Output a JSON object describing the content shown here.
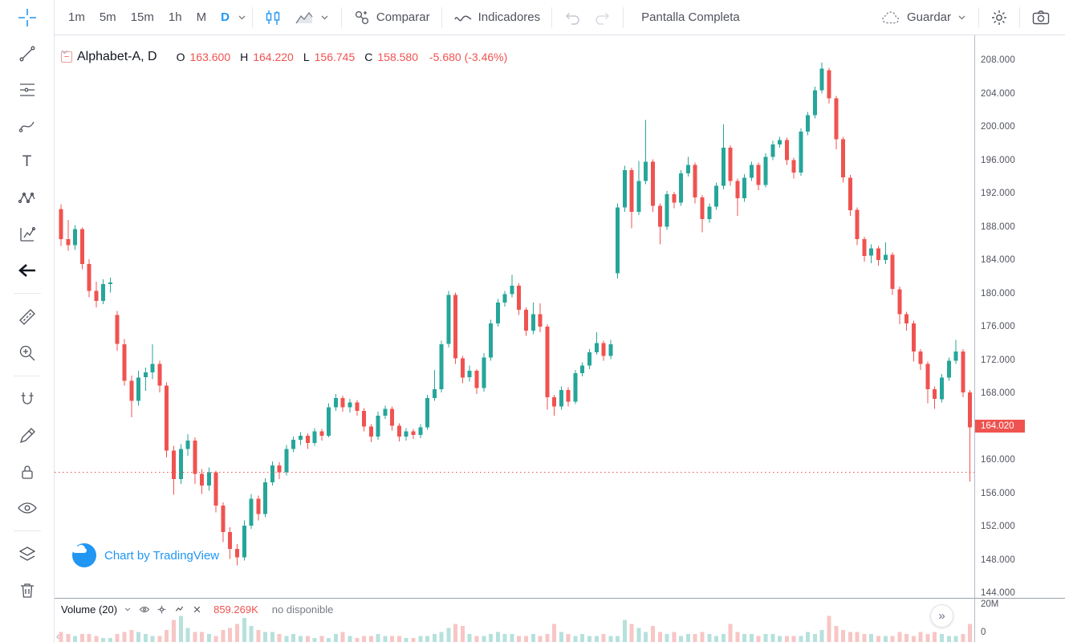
{
  "toolbar": {
    "intervals": [
      {
        "label": "1m",
        "active": false
      },
      {
        "label": "5m",
        "active": false
      },
      {
        "label": "15m",
        "active": false
      },
      {
        "label": "1h",
        "active": false
      },
      {
        "label": "M",
        "active": false
      },
      {
        "label": "D",
        "active": true
      }
    ],
    "compare_label": "Comparar",
    "indicators_label": "Indicadores",
    "fullscreen_label": "Pantalla Completa",
    "save_label": "Guardar"
  },
  "legend": {
    "symbol": "Alphabet-A, D",
    "o_label": "O",
    "o_value": "163.600",
    "h_label": "H",
    "h_value": "164.220",
    "l_label": "L",
    "l_value": "156.745",
    "c_label": "C",
    "c_value": "158.580",
    "change": "-5.680 (-3.46%)",
    "collapse_glyph": "−"
  },
  "watermark_text": "Chart by TradingView",
  "price_axis": {
    "labels": [
      "208.000",
      "204.000",
      "200.000",
      "196.000",
      "192.000",
      "188.000",
      "184.000",
      "180.000",
      "176.000",
      "172.000",
      "168.000",
      "164.000",
      "160.000",
      "156.000",
      "152.000",
      "148.000",
      "144.000"
    ],
    "last_price_label": "164.020"
  },
  "volume_pane": {
    "title": "Volume (20)",
    "value": "859.269K",
    "status": "no disponible",
    "axis_top": "20M",
    "axis_bottom": "0"
  },
  "icons": {
    "restore_pane": "»",
    "scroll_left": "‹",
    "text_tool": "T"
  },
  "chart_data": {
    "type": "candlestick",
    "symbol": "Alphabet-A",
    "interval": "D",
    "price_max": 208,
    "price_min": 144,
    "grid": false,
    "colors": {
      "up": "#26a69a",
      "down": "#ef5350",
      "vol_up": "#b7e1dc",
      "vol_down": "#f7c6c5",
      "accent": "#2196f3",
      "last_label_bg": "#ef5350"
    },
    "dotted_line_price": 158.58,
    "last_price": 164.02,
    "volume_axis_max": 20,
    "candles": [
      [
        190.2,
        190.8,
        185.8,
        186.6
      ],
      [
        186.6,
        188.9,
        185.2,
        185.9
      ],
      [
        185.9,
        188.3,
        185.3,
        187.8
      ],
      [
        187.8,
        188.0,
        183.0,
        183.6
      ],
      [
        183.6,
        184.2,
        179.6,
        180.4
      ],
      [
        180.4,
        181.5,
        178.4,
        179.2
      ],
      [
        179.2,
        181.8,
        178.8,
        181.2
      ],
      [
        181.2,
        182.0,
        180.2,
        181.4
      ],
      [
        177.5,
        178.0,
        173.2,
        174.0
      ],
      [
        174.0,
        174.6,
        169.0,
        169.6
      ],
      [
        169.6,
        170.2,
        165.2,
        167.2
      ],
      [
        167.2,
        170.8,
        166.6,
        170.0
      ],
      [
        170.0,
        171.2,
        168.4,
        170.6
      ],
      [
        170.6,
        174.0,
        169.8,
        171.6
      ],
      [
        171.6,
        172.0,
        168.2,
        169.0
      ],
      [
        169.0,
        169.4,
        160.4,
        161.2
      ],
      [
        161.2,
        161.8,
        155.9,
        157.8
      ],
      [
        157.8,
        162.0,
        157.2,
        161.4
      ],
      [
        161.4,
        163.2,
        160.6,
        162.4
      ],
      [
        162.4,
        162.8,
        157.2,
        158.4
      ],
      [
        158.4,
        159.0,
        156.0,
        157.0
      ],
      [
        157.0,
        159.2,
        156.4,
        158.6
      ],
      [
        158.6,
        158.8,
        153.8,
        154.6
      ],
      [
        154.6,
        155.0,
        150.2,
        151.4
      ],
      [
        151.4,
        152.0,
        148.2,
        149.4
      ],
      [
        149.4,
        150.0,
        147.4,
        148.4
      ],
      [
        148.4,
        152.8,
        148.0,
        152.2
      ],
      [
        152.2,
        156.0,
        151.8,
        155.4
      ],
      [
        155.4,
        155.8,
        152.8,
        153.6
      ],
      [
        153.6,
        157.9,
        153.2,
        157.4
      ],
      [
        157.4,
        159.9,
        157.0,
        159.4
      ],
      [
        159.4,
        159.8,
        157.8,
        158.6
      ],
      [
        158.6,
        161.9,
        158.2,
        161.4
      ],
      [
        161.4,
        162.9,
        161.0,
        162.5
      ],
      [
        162.5,
        163.4,
        161.9,
        163.0
      ],
      [
        163.0,
        163.3,
        161.4,
        162.1
      ],
      [
        162.1,
        163.9,
        161.8,
        163.5
      ],
      [
        163.5,
        163.8,
        162.4,
        163.0
      ],
      [
        163.0,
        166.9,
        162.8,
        166.4
      ],
      [
        166.4,
        168.0,
        166.0,
        167.5
      ],
      [
        167.5,
        167.8,
        165.9,
        166.4
      ],
      [
        166.4,
        167.4,
        165.8,
        167.0
      ],
      [
        167.0,
        167.3,
        165.4,
        166.0
      ],
      [
        166.0,
        166.3,
        163.5,
        164.1
      ],
      [
        164.1,
        164.4,
        162.2,
        162.9
      ],
      [
        162.9,
        165.9,
        162.5,
        165.4
      ],
      [
        165.4,
        166.6,
        165.0,
        166.2
      ],
      [
        166.2,
        166.5,
        163.6,
        164.2
      ],
      [
        164.2,
        164.5,
        162.3,
        162.9
      ],
      [
        162.9,
        163.9,
        162.4,
        163.5
      ],
      [
        163.5,
        163.8,
        162.6,
        163.1
      ],
      [
        163.1,
        164.4,
        162.7,
        164.0
      ],
      [
        164.0,
        167.9,
        163.7,
        167.5
      ],
      [
        167.5,
        170.9,
        167.2,
        168.6
      ],
      [
        168.6,
        174.4,
        168.2,
        174.0
      ],
      [
        174.0,
        180.4,
        173.6,
        179.9
      ],
      [
        179.9,
        180.2,
        171.6,
        172.3
      ],
      [
        172.3,
        172.6,
        169.3,
        170.0
      ],
      [
        170.0,
        171.4,
        169.5,
        170.8
      ],
      [
        170.8,
        171.0,
        168.0,
        168.7
      ],
      [
        168.7,
        172.9,
        168.3,
        172.4
      ],
      [
        172.4,
        176.9,
        172.0,
        176.5
      ],
      [
        176.5,
        179.4,
        176.1,
        179.0
      ],
      [
        179.0,
        180.4,
        178.5,
        180.0
      ],
      [
        180.0,
        182.3,
        179.6,
        181.0
      ],
      [
        181.0,
        181.3,
        177.5,
        178.1
      ],
      [
        178.1,
        178.4,
        175.0,
        175.6
      ],
      [
        175.6,
        179.0,
        175.2,
        177.6
      ],
      [
        177.6,
        178.9,
        175.4,
        176.1
      ],
      [
        176.1,
        176.4,
        166.1,
        167.6
      ],
      [
        167.6,
        167.9,
        165.4,
        166.5
      ],
      [
        166.5,
        168.9,
        166.1,
        168.5
      ],
      [
        168.5,
        168.8,
        166.5,
        167.1
      ],
      [
        167.1,
        170.9,
        166.8,
        170.5
      ],
      [
        170.5,
        171.8,
        170.1,
        171.4
      ],
      [
        171.4,
        173.4,
        171.0,
        173.0
      ],
      [
        173.0,
        175.4,
        172.7,
        174.1
      ],
      [
        174.1,
        174.4,
        172.0,
        172.6
      ],
      [
        172.6,
        174.5,
        172.2,
        174.0
      ],
      [
        182.5,
        190.9,
        181.9,
        190.4
      ],
      [
        190.4,
        195.4,
        189.9,
        194.9
      ],
      [
        194.9,
        195.2,
        187.9,
        189.9
      ],
      [
        189.9,
        196.0,
        189.5,
        193.6
      ],
      [
        193.6,
        200.9,
        193.2,
        195.9
      ],
      [
        195.9,
        196.2,
        189.9,
        190.6
      ],
      [
        190.6,
        190.9,
        186.0,
        188.1
      ],
      [
        188.1,
        192.4,
        187.7,
        192.0
      ],
      [
        192.0,
        192.3,
        190.3,
        191.0
      ],
      [
        191.0,
        194.9,
        190.6,
        194.5
      ],
      [
        194.5,
        196.5,
        194.1,
        195.5
      ],
      [
        195.5,
        195.8,
        190.9,
        191.6
      ],
      [
        191.6,
        191.9,
        187.4,
        189.0
      ],
      [
        189.0,
        190.9,
        188.6,
        190.5
      ],
      [
        190.5,
        193.4,
        190.1,
        193.0
      ],
      [
        193.0,
        200.4,
        192.6,
        197.6
      ],
      [
        197.6,
        197.9,
        193.0,
        193.6
      ],
      [
        193.6,
        193.9,
        189.4,
        191.5
      ],
      [
        191.5,
        194.4,
        191.1,
        194.0
      ],
      [
        194.0,
        195.9,
        193.6,
        195.5
      ],
      [
        195.5,
        195.8,
        192.5,
        193.1
      ],
      [
        193.1,
        196.9,
        192.8,
        196.5
      ],
      [
        196.5,
        198.4,
        196.1,
        198.0
      ],
      [
        198.0,
        198.9,
        197.6,
        198.5
      ],
      [
        198.5,
        198.8,
        195.5,
        196.1
      ],
      [
        196.1,
        196.4,
        193.9,
        194.6
      ],
      [
        194.6,
        199.9,
        194.2,
        199.5
      ],
      [
        199.5,
        201.9,
        199.1,
        201.5
      ],
      [
        201.5,
        204.9,
        201.1,
        204.5
      ],
      [
        204.5,
        207.8,
        204.1,
        207.1
      ],
      [
        206.9,
        207.2,
        202.9,
        203.5
      ],
      [
        203.5,
        203.8,
        197.4,
        198.6
      ],
      [
        198.6,
        198.9,
        193.4,
        194.0
      ],
      [
        194.0,
        194.3,
        189.4,
        190.1
      ],
      [
        190.1,
        190.4,
        185.9,
        186.6
      ],
      [
        186.6,
        186.9,
        183.9,
        184.6
      ],
      [
        184.6,
        186.0,
        183.7,
        185.5
      ],
      [
        185.5,
        185.8,
        183.4,
        184.1
      ],
      [
        184.1,
        186.2,
        183.6,
        184.7
      ],
      [
        184.7,
        185.0,
        179.9,
        180.6
      ],
      [
        180.6,
        180.9,
        176.4,
        177.6
      ],
      [
        177.6,
        177.9,
        175.6,
        176.5
      ],
      [
        176.5,
        176.8,
        171.9,
        173.1
      ],
      [
        173.1,
        173.4,
        170.9,
        171.6
      ],
      [
        171.6,
        171.9,
        166.9,
        168.6
      ],
      [
        168.6,
        168.9,
        166.2,
        167.4
      ],
      [
        167.4,
        170.4,
        167.0,
        170.0
      ],
      [
        170.0,
        172.4,
        169.6,
        172.0
      ],
      [
        172.0,
        174.5,
        171.6,
        173.1
      ],
      [
        173.1,
        173.4,
        167.6,
        168.2
      ],
      [
        168.2,
        168.5,
        157.5,
        164.0
      ]
    ],
    "volumes": [
      5,
      4,
      3,
      4,
      4,
      3,
      2,
      2,
      4,
      5,
      6,
      5,
      4,
      3,
      3,
      6,
      11,
      13,
      7,
      5,
      5,
      4,
      3,
      6,
      7,
      9,
      12,
      8,
      6,
      5,
      5,
      4,
      3,
      4,
      3,
      3,
      2,
      3,
      2,
      4,
      5,
      3,
      2,
      3,
      3,
      4,
      3,
      3,
      3,
      2,
      2,
      3,
      3,
      4,
      5,
      7,
      9,
      8,
      4,
      3,
      3,
      4,
      5,
      4,
      4,
      3,
      3,
      4,
      3,
      4,
      9,
      5,
      4,
      3,
      4,
      3,
      3,
      4,
      3,
      3,
      11,
      9,
      7,
      5,
      8,
      5,
      4,
      5,
      3,
      4,
      4,
      5,
      4,
      3,
      4,
      9,
      5,
      4,
      4,
      3,
      4,
      4,
      3,
      3,
      3,
      3,
      5,
      4,
      6,
      13,
      8,
      6,
      5,
      5,
      4,
      4,
      3,
      3,
      3,
      5,
      4,
      3,
      5,
      4,
      5,
      4,
      3,
      3,
      4,
      9
    ]
  }
}
